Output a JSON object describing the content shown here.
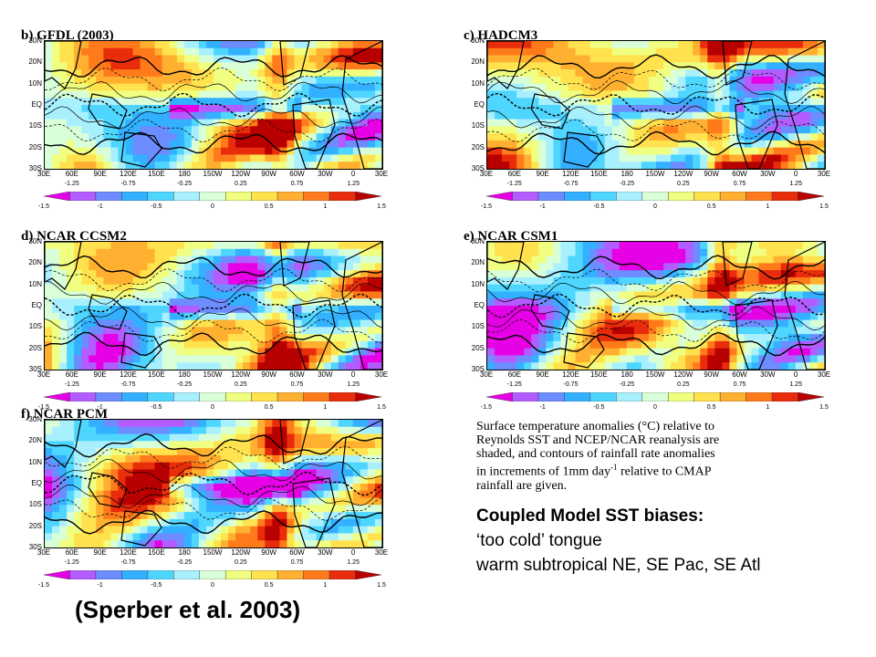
{
  "panels": [
    {
      "id": "b",
      "title": "b) GFDL (2003)"
    },
    {
      "id": "c",
      "title": "c) HADCM3"
    },
    {
      "id": "d",
      "title": "d) NCAR CCSM2"
    },
    {
      "id": "e",
      "title": "e) NCAR CSM1"
    },
    {
      "id": "f",
      "title": "f) NCAR PCM"
    }
  ],
  "axes": {
    "lat_ticks": [
      "30N",
      "20N",
      "10N",
      "EQ",
      "10S",
      "20S",
      "30S"
    ],
    "lon_ticks": [
      "30E",
      "60E",
      "90E",
      "120E",
      "150E",
      "180",
      "150W",
      "120W",
      "90W",
      "60W",
      "30W",
      "0",
      "30E"
    ]
  },
  "colorbar": {
    "upper_ticks": [
      "-1.25",
      "-0.75",
      "-0.25",
      "0.25",
      "0.75",
      "1.25"
    ],
    "lower_ticks": [
      "-1.5",
      "-1",
      "-0.5",
      "0",
      "0.5",
      "1",
      "1.5"
    ],
    "colors": [
      "#e600e6",
      "#b35cff",
      "#6c8cff",
      "#33b0ff",
      "#4fd6ff",
      "#a9f0ff",
      "#d8ffd8",
      "#f0ff80",
      "#ffe24d",
      "#ffb030",
      "#ff7a1a",
      "#e82c0c",
      "#b80000"
    ]
  },
  "caption": {
    "line1": "Surface temperature anomalies (°C) relative to",
    "line2": "Reynolds SST and NCEP/NCAR reanalysis are",
    "line3": "shaded, and contours of rainfall rate anomalies",
    "line4_pre": "in increments of 1mm day",
    "line4_sup": "-1",
    "line4_post": " relative to CMAP",
    "line5": "rainfall are given."
  },
  "biases": {
    "heading": "Coupled Model SST biases:",
    "item1": "‘too cold’ tongue",
    "item2": "warm subtropical NE, SE Pac, SE Atl"
  },
  "citation": "(Sperber et al. 2003)"
}
